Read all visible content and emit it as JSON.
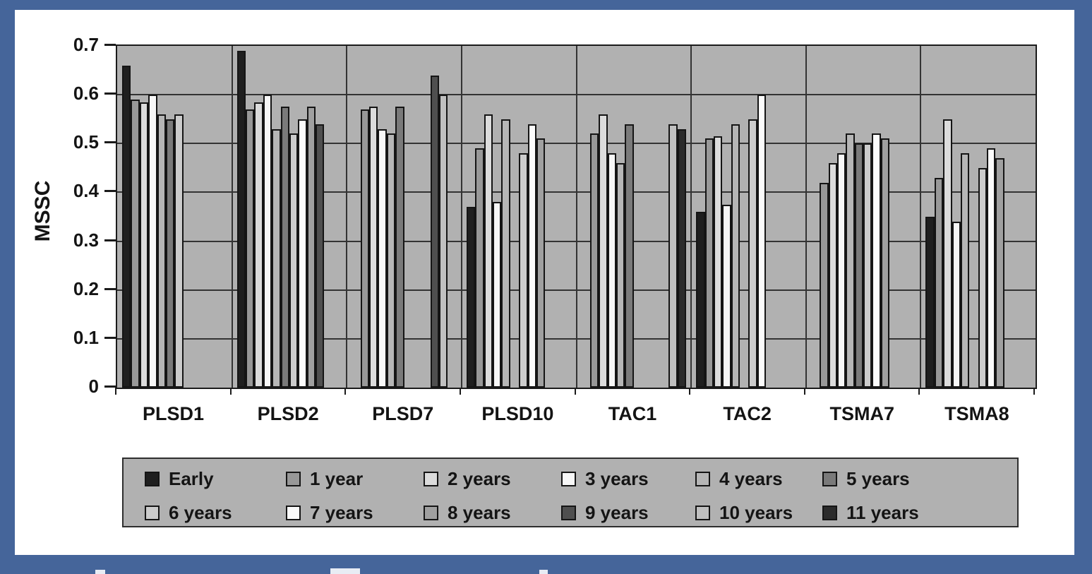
{
  "figure": {
    "background_color": "#45659A",
    "panel_color": "#ffffff",
    "plot_background_color": "#b1b1b1"
  },
  "chart_data": {
    "type": "bar",
    "title": "",
    "xlabel": "",
    "ylabel": "MSSC",
    "ylim": [
      0,
      0.7
    ],
    "ytick_step": 0.1,
    "ytick_labels": [
      "0.7",
      "0.6",
      "0.5",
      "0.4",
      "0.3",
      "0.2",
      "0.1",
      "0"
    ],
    "grid": true,
    "legend_position": "bottom",
    "legend_rows": 2,
    "legend_columns": 6,
    "categories": [
      "PLSD1",
      "PLSD2",
      "PLSD7",
      "PLSD10",
      "TAC1",
      "TAC2",
      "TSMA7",
      "TSMA8"
    ],
    "series": [
      {
        "name": "Early",
        "color": "#1f1f1f",
        "values": [
          0.66,
          0.69,
          null,
          0.37,
          null,
          0.36,
          null,
          0.35
        ]
      },
      {
        "name": "1 year",
        "color": "#989898",
        "values": [
          0.59,
          0.57,
          0.57,
          0.49,
          0.52,
          0.51,
          0.42,
          0.43
        ]
      },
      {
        "name": "2 years",
        "color": "#dcdcdc",
        "values": [
          0.585,
          0.585,
          0.575,
          0.56,
          0.56,
          0.515,
          0.46,
          0.55
        ]
      },
      {
        "name": "3 years",
        "color": "#f7f7f7",
        "values": [
          0.6,
          0.6,
          0.53,
          0.38,
          0.48,
          0.375,
          0.48,
          0.34
        ]
      },
      {
        "name": "4 years",
        "color": "#b6b6b6",
        "values": [
          0.56,
          0.53,
          0.52,
          0.55,
          0.46,
          0.54,
          0.52,
          0.48
        ]
      },
      {
        "name": "5 years",
        "color": "#7a7a7a",
        "values": [
          0.55,
          0.575,
          0.575,
          null,
          0.54,
          null,
          0.5,
          null
        ]
      },
      {
        "name": "6 years",
        "color": "#cccccc",
        "values": [
          0.56,
          0.52,
          null,
          0.48,
          null,
          0.55,
          0.5,
          0.45
        ]
      },
      {
        "name": "7 years",
        "color": "#fbfbfb",
        "values": [
          null,
          0.55,
          null,
          0.54,
          null,
          0.6,
          0.52,
          0.49
        ]
      },
      {
        "name": "8 years",
        "color": "#a0a0a0",
        "values": [
          null,
          0.575,
          null,
          0.51,
          null,
          null,
          0.51,
          0.47
        ]
      },
      {
        "name": "9 years",
        "color": "#4f4f4f",
        "values": [
          null,
          0.54,
          0.64,
          null,
          null,
          null,
          null,
          null
        ]
      },
      {
        "name": "10 years",
        "color": "#c0c0c0",
        "values": [
          null,
          null,
          0.6,
          null,
          0.54,
          null,
          null,
          null
        ]
      },
      {
        "name": "11 years",
        "color": "#2b2b2b",
        "values": [
          null,
          null,
          null,
          null,
          0.53,
          null,
          null,
          null
        ]
      }
    ]
  }
}
